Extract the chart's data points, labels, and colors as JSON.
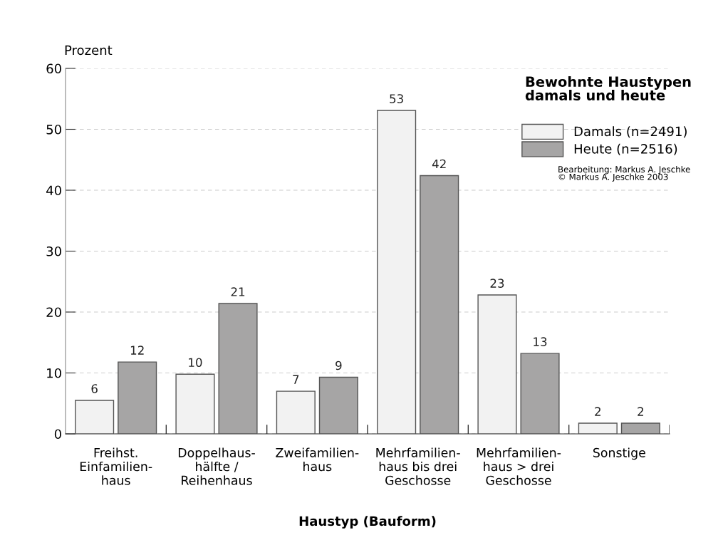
{
  "chart_data": {
    "type": "bar",
    "title": "Bewohnte Haustypen\ndamals und heute",
    "xlabel": "Haustyp (Bauform)",
    "ylabel": "Prozent",
    "categories": [
      "Freihst.\nEinfamilien-\nhaus",
      "Doppelhaus-\nhälfte /\nReihenhaus",
      "Zweifamilien-\nhaus",
      "Mehrfamilien-\nhaus bis drei\nGeschosse",
      "Mehrfamilien-\nhaus > drei\nGeschosse",
      "Sonstige"
    ],
    "series": [
      {
        "name": "Damals (n=2491)",
        "color": "#f2f2f2",
        "values": [
          5.5,
          9.8,
          7.0,
          53.1,
          22.8,
          1.75
        ],
        "value_labels": [
          "6",
          "10",
          "7",
          "53",
          "23",
          "2"
        ]
      },
      {
        "name": "Heute (n=2516)",
        "color": "#a6a5a5",
        "values": [
          11.8,
          21.4,
          9.3,
          42.4,
          13.2,
          1.75
        ],
        "value_labels": [
          "12",
          "21",
          "9",
          "42",
          "13",
          "2"
        ]
      }
    ],
    "ylim": [
      0,
      60
    ],
    "yticks": [
      0,
      10,
      20,
      30,
      40,
      50,
      60
    ],
    "grid": "y",
    "legend": "top right",
    "annotations": [
      "Bearbeitung: Markus A. Jeschke\n© Markus A. Jeschke 2003"
    ]
  }
}
